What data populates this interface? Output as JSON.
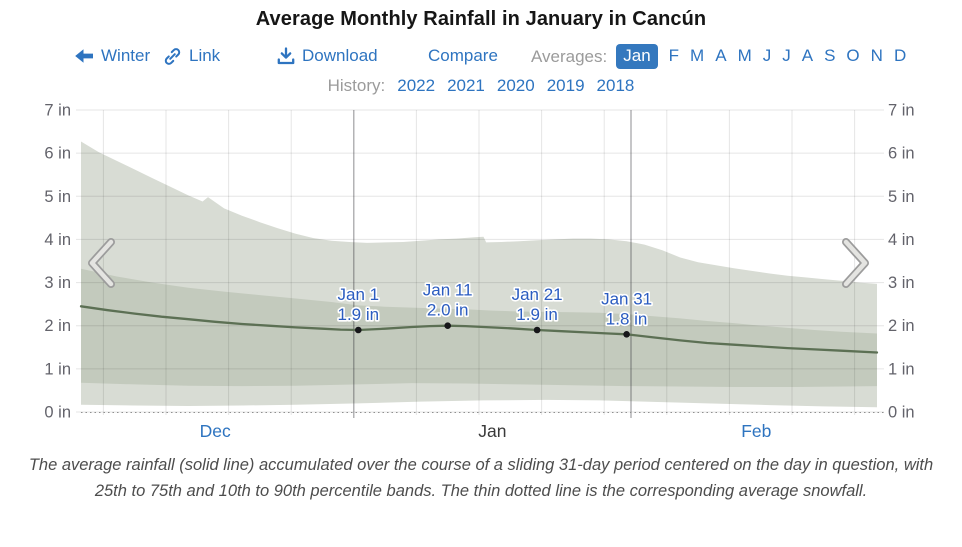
{
  "title": "Average Monthly Rainfall in January in Cancún",
  "toolbar": {
    "winter": {
      "label": "Winter",
      "icon": "back-arrow-icon"
    },
    "link": {
      "label": "Link",
      "icon": "link-icon"
    },
    "download": {
      "label": "Download",
      "icon": "download-icon"
    },
    "compare": {
      "label": "Compare"
    },
    "averages_label": "Averages:",
    "selected_month": "Jan",
    "other_months": [
      "F",
      "M",
      "A",
      "M",
      "J",
      "J",
      "A",
      "S",
      "O",
      "N",
      "D"
    ]
  },
  "history": {
    "label": "History:",
    "years": [
      "2022",
      "2021",
      "2020",
      "2019",
      "2018"
    ]
  },
  "caption": "The average rainfall (solid line) accumulated over the course of a sliding 31-day period centered on the day in question, with 25th to 75th and 10th to 90th percentile bands. The thin dotted line is the corresponding average snowfall.",
  "colors": {
    "accent_blue": "#2e74c0",
    "label_blue": "#2b5cc0",
    "band_outer": "#d8dcd4",
    "band_inner": "#c3cabd",
    "mean_line": "#5c7054",
    "dot": "#17171a",
    "axis_text": "#63636b",
    "muted_text": "#9b9b9b",
    "title_text": "#161616",
    "current_month_text": "#3a3a3a",
    "chip_bg": "#3478be",
    "chip_text": "#ffffff",
    "caption_text": "#4d4d4d",
    "grid": "rgba(0,0,0,0.10)",
    "grid_dark": "rgba(45,45,52,0.45)",
    "snow_dotted": "#8f8f8f",
    "chevron_outer": "#9c9c9c",
    "chevron_inner": "#e4e4e1"
  },
  "chart_data": {
    "type": "area",
    "title": "Average Monthly Rainfall in January in Cancún",
    "unit": "in",
    "ylim": [
      0,
      7
    ],
    "y_tick_labels": [
      "0 in",
      "1 in",
      "2 in",
      "3 in",
      "4 in",
      "5 in",
      "6 in",
      "7 in"
    ],
    "x_domain_days": [
      0,
      89
    ],
    "x_months": [
      {
        "label": "Dec",
        "day": 15,
        "link": true
      },
      {
        "label": "Jan",
        "day": 46,
        "link": false
      },
      {
        "label": "Feb",
        "day": 75.5,
        "link": true
      }
    ],
    "gridline_days": [
      2.5,
      9.5,
      16.5,
      23.5,
      37.5,
      44.5,
      51.5,
      58.5,
      65.5,
      72.5,
      79.5,
      86.5
    ],
    "month_boundary_days": [
      30.5,
      61.5
    ],
    "snowfall_value": 0,
    "annotations": [
      {
        "day": 31,
        "label": "Jan 1",
        "value": 1.9,
        "value_label": "1.9 in"
      },
      {
        "day": 41,
        "label": "Jan 11",
        "value": 2.0,
        "value_label": "2.0 in"
      },
      {
        "day": 51,
        "label": "Jan 21",
        "value": 1.9,
        "value_label": "1.9 in"
      },
      {
        "day": 61,
        "label": "Jan 31",
        "value": 1.8,
        "value_label": "1.8 in"
      }
    ],
    "series": [
      {
        "name": "90th percentile",
        "role": "p90",
        "points": [
          [
            0,
            6.27
          ],
          [
            2,
            6.02
          ],
          [
            4,
            5.82
          ],
          [
            6,
            5.62
          ],
          [
            8,
            5.42
          ],
          [
            10,
            5.22
          ],
          [
            12,
            5.02
          ],
          [
            13.6,
            4.88
          ],
          [
            14.2,
            4.98
          ],
          [
            16,
            4.72
          ],
          [
            18,
            4.55
          ],
          [
            20,
            4.4
          ],
          [
            22,
            4.26
          ],
          [
            24,
            4.13
          ],
          [
            26,
            4.03
          ],
          [
            28,
            3.97
          ],
          [
            30,
            3.94
          ],
          [
            32,
            3.92
          ],
          [
            34,
            3.93
          ],
          [
            36,
            3.94
          ],
          [
            38,
            3.97
          ],
          [
            40,
            4.0
          ],
          [
            42,
            4.02
          ],
          [
            44,
            4.05
          ],
          [
            45,
            4.06
          ],
          [
            45.3,
            3.93
          ],
          [
            47,
            3.94
          ],
          [
            49,
            3.96
          ],
          [
            51,
            3.98
          ],
          [
            53,
            4.0
          ],
          [
            55,
            4.02
          ],
          [
            57,
            4.02
          ],
          [
            59,
            4.0
          ],
          [
            61,
            3.96
          ],
          [
            63,
            3.88
          ],
          [
            65,
            3.75
          ],
          [
            67,
            3.58
          ],
          [
            69,
            3.47
          ],
          [
            71,
            3.4
          ],
          [
            73,
            3.33
          ],
          [
            75,
            3.27
          ],
          [
            77,
            3.21
          ],
          [
            79,
            3.16
          ],
          [
            81,
            3.12
          ],
          [
            83,
            3.08
          ],
          [
            85,
            3.04
          ],
          [
            87,
            3.0
          ],
          [
            89,
            2.97
          ]
        ]
      },
      {
        "name": "75th percentile",
        "role": "p75",
        "points": [
          [
            0,
            3.32
          ],
          [
            4,
            3.14
          ],
          [
            8,
            3.0
          ],
          [
            12,
            2.88
          ],
          [
            16,
            2.79
          ],
          [
            20,
            2.71
          ],
          [
            24,
            2.63
          ],
          [
            28,
            2.55
          ],
          [
            31,
            2.47
          ],
          [
            34,
            2.44
          ],
          [
            37,
            2.42
          ],
          [
            40,
            2.4
          ],
          [
            43,
            2.38
          ],
          [
            46,
            2.35
          ],
          [
            49,
            2.33
          ],
          [
            52,
            2.32
          ],
          [
            55,
            2.31
          ],
          [
            58,
            2.3
          ],
          [
            61,
            2.27
          ],
          [
            64,
            2.22
          ],
          [
            67,
            2.17
          ],
          [
            70,
            2.11
          ],
          [
            73,
            2.06
          ],
          [
            76,
            2.0
          ],
          [
            79,
            1.95
          ],
          [
            82,
            1.9
          ],
          [
            85,
            1.86
          ],
          [
            89,
            1.82
          ]
        ]
      },
      {
        "name": "Average rainfall",
        "role": "mean",
        "points": [
          [
            0,
            2.45
          ],
          [
            3,
            2.36
          ],
          [
            6,
            2.28
          ],
          [
            9,
            2.21
          ],
          [
            12,
            2.15
          ],
          [
            15,
            2.09
          ],
          [
            18,
            2.04
          ],
          [
            21,
            2.0
          ],
          [
            24,
            1.96
          ],
          [
            27,
            1.93
          ],
          [
            29,
            1.91
          ],
          [
            31,
            1.9
          ],
          [
            34,
            1.93
          ],
          [
            37,
            1.97
          ],
          [
            39,
            1.99
          ],
          [
            41,
            2.0
          ],
          [
            43,
            1.99
          ],
          [
            45,
            1.97
          ],
          [
            48,
            1.94
          ],
          [
            51,
            1.9
          ],
          [
            54,
            1.87
          ],
          [
            57,
            1.84
          ],
          [
            59,
            1.82
          ],
          [
            61,
            1.8
          ],
          [
            64,
            1.73
          ],
          [
            67,
            1.66
          ],
          [
            70,
            1.6
          ],
          [
            73,
            1.56
          ],
          [
            76,
            1.52
          ],
          [
            79,
            1.48
          ],
          [
            82,
            1.45
          ],
          [
            85,
            1.42
          ],
          [
            89,
            1.38
          ]
        ]
      },
      {
        "name": "25th percentile",
        "role": "p25",
        "points": [
          [
            0,
            0.68
          ],
          [
            6,
            0.64
          ],
          [
            12,
            0.61
          ],
          [
            18,
            0.6
          ],
          [
            24,
            0.61
          ],
          [
            31,
            0.64
          ],
          [
            37,
            0.67
          ],
          [
            43,
            0.66
          ],
          [
            49,
            0.64
          ],
          [
            55,
            0.62
          ],
          [
            61,
            0.6
          ],
          [
            67,
            0.59
          ],
          [
            73,
            0.58
          ],
          [
            80,
            0.58
          ],
          [
            89,
            0.6
          ]
        ]
      },
      {
        "name": "10th percentile",
        "role": "p10",
        "points": [
          [
            0,
            0.17
          ],
          [
            6,
            0.15
          ],
          [
            12,
            0.14
          ],
          [
            18,
            0.15
          ],
          [
            24,
            0.17
          ],
          [
            31,
            0.2
          ],
          [
            38,
            0.24
          ],
          [
            45,
            0.27
          ],
          [
            52,
            0.28
          ],
          [
            58,
            0.27
          ],
          [
            63,
            0.24
          ],
          [
            70,
            0.2
          ],
          [
            77,
            0.16
          ],
          [
            83,
            0.13
          ],
          [
            89,
            0.11
          ]
        ]
      }
    ]
  }
}
